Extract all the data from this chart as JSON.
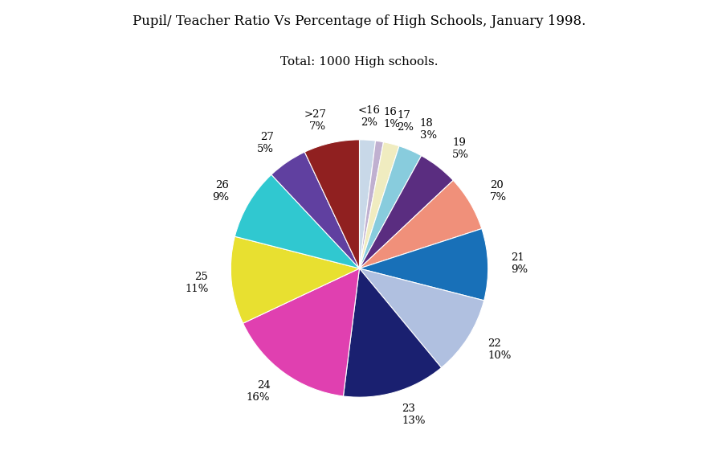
{
  "title": "Pupil/ Teacher Ratio Vs Percentage of High Schools, January 1998.",
  "subtitle": "Total: 1000 High schools.",
  "labels": [
    "<16",
    "16",
    "17",
    "18",
    "19",
    "20",
    "21",
    "22",
    "23",
    "24",
    "25",
    "26",
    "27",
    ">27"
  ],
  "percentages": [
    2,
    1,
    2,
    3,
    5,
    7,
    9,
    10,
    13,
    16,
    11,
    9,
    5,
    7
  ],
  "colors": [
    "#c8d8e8",
    "#c0b0d0",
    "#f0ecc0",
    "#88ccdd",
    "#5a2d80",
    "#f0907a",
    "#1870b8",
    "#b0c0e0",
    "#1a2070",
    "#e040b0",
    "#e8e030",
    "#30c8d0",
    "#6040a0",
    "#902020"
  ],
  "background_color": "#ffffff",
  "title_fontsize": 12,
  "subtitle_fontsize": 11,
  "label_fontsize": 9.5
}
